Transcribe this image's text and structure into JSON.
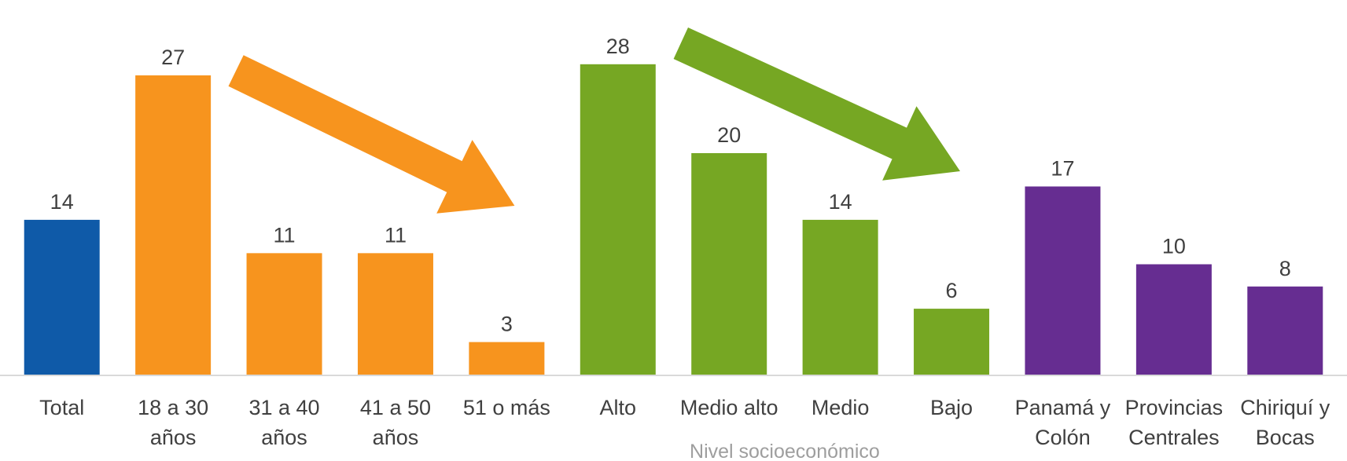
{
  "chart_data": {
    "type": "bar",
    "title": "",
    "xlabel": "",
    "ylabel": "",
    "grid": false,
    "legend": "none",
    "ylim": [
      0,
      30
    ],
    "categories": [
      [
        "Total"
      ],
      [
        "18 a 30",
        "años"
      ],
      [
        "31 a 40",
        "años"
      ],
      [
        "41 a 50",
        "años"
      ],
      [
        "51 o más"
      ],
      [
        "Alto"
      ],
      [
        "Medio alto"
      ],
      [
        "Medio"
      ],
      [
        "Bajo"
      ],
      [
        "Panamá y",
        "Colón"
      ],
      [
        "Provincias",
        "Centrales"
      ],
      [
        "Chiriquí y",
        "Bocas"
      ]
    ],
    "values": [
      14,
      27,
      11,
      11,
      3,
      28,
      20,
      14,
      6,
      17,
      10,
      8
    ],
    "value_labels": [
      "14",
      "27",
      "11",
      "11",
      "3",
      "28",
      "20",
      "14",
      "6",
      "17",
      "10",
      "8"
    ],
    "bar_colors": [
      "#0f5aa8",
      "#f7941e",
      "#f7941e",
      "#f7941e",
      "#f7941e",
      "#76a723",
      "#76a723",
      "#76a723",
      "#76a723",
      "#662d91",
      "#662d91",
      "#662d91"
    ],
    "group_label": "Nivel socioeconómico",
    "arrows": [
      {
        "color": "#f7941e",
        "from_category": 1,
        "to_category": 4,
        "direction": "down-right"
      },
      {
        "color": "#76a723",
        "from_category": 5,
        "to_category": 8,
        "direction": "down-right"
      }
    ]
  }
}
